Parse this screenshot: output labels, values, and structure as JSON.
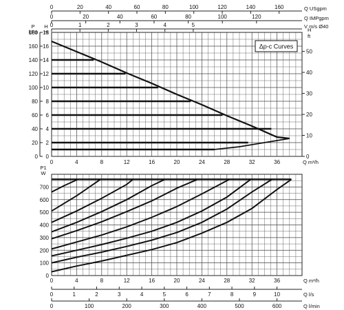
{
  "chart_data": [
    {
      "type": "line",
      "panel": "upper",
      "title": "",
      "legend_box": "Δp-c Curves",
      "legend_placement": "top-right",
      "grid": true,
      "xlabel": "Q m³/h",
      "xlim": [
        0,
        40
      ],
      "x_ticks": [
        0,
        4,
        8,
        12,
        16,
        20,
        24,
        28,
        32,
        36
      ],
      "ylim_m": [
        0,
        18
      ],
      "ylabel_left_outer": "P kPa",
      "y_ticks_kpa": [
        0,
        20,
        40,
        60,
        80,
        100,
        120,
        140,
        160,
        180
      ],
      "ylabel_left_inner": "H m",
      "y_ticks_m": [
        0,
        2,
        4,
        6,
        8,
        10,
        12,
        14,
        16,
        18
      ],
      "ylabel_right": "H ft",
      "y_ticks_ft": [
        0,
        10,
        20,
        30,
        40,
        50
      ],
      "top_axes": [
        {
          "label": "Q USgpm",
          "ticks": [
            0,
            20,
            40,
            60,
            80,
            100,
            120,
            140,
            160
          ]
        },
        {
          "label": "Q IMPgpm",
          "ticks": [
            0,
            20,
            40,
            60,
            80,
            100,
            120
          ]
        },
        {
          "label": "V m/s Ø40",
          "ticks": [
            0,
            1,
            2,
            3,
            4,
            5
          ]
        }
      ],
      "max_curve": {
        "x": [
          0,
          4,
          8,
          12,
          16,
          20,
          24,
          28,
          32,
          36,
          38
        ],
        "y": [
          16.7,
          15.2,
          13.7,
          12.1,
          10.6,
          9.0,
          7.5,
          5.9,
          4.4,
          2.8,
          2.6
        ]
      },
      "min_curve": {
        "x": [
          0,
          26,
          30,
          34,
          38
        ],
        "y": [
          1.0,
          1.0,
          1.4,
          2.0,
          2.6
        ]
      },
      "flat_curves": [
        {
          "y": 1.0,
          "x_end": 26
        },
        {
          "y": 2.0,
          "x_end": 31.4
        },
        {
          "y": 4.0,
          "x_end": 35.1
        },
        {
          "y": 6.0,
          "x_end": 27.3
        },
        {
          "y": 8.0,
          "x_end": 22.2
        },
        {
          "y": 10.0,
          "x_end": 17.0
        },
        {
          "y": 12.0,
          "x_end": 11.8
        },
        {
          "y": 14.0,
          "x_end": 6.7
        }
      ]
    },
    {
      "type": "line",
      "panel": "lower",
      "title": "",
      "grid": true,
      "xlim": [
        0,
        40
      ],
      "ylabel": "P1 W",
      "ylim": [
        0,
        800
      ],
      "y_ticks": [
        0,
        100,
        200,
        300,
        400,
        500,
        600,
        700
      ],
      "bottom_axes": [
        {
          "label": "Q m³/h",
          "ticks": [
            0,
            4,
            8,
            12,
            16,
            20,
            24,
            28,
            32,
            36
          ]
        },
        {
          "label": "Q l/s",
          "ticks": [
            0,
            1,
            2,
            3,
            4,
            5,
            6,
            7,
            8,
            9,
            10
          ]
        },
        {
          "label": "Q l/min",
          "ticks": [
            0,
            100,
            200,
            300,
            400,
            500,
            600
          ]
        }
      ],
      "max_power": 760,
      "power_curves": [
        {
          "x": [
            0,
            4,
            8,
            12,
            16,
            20,
            24,
            28,
            32,
            36,
            38.3
          ],
          "y": [
            30,
            75,
            115,
            160,
            205,
            260,
            335,
            420,
            530,
            680,
            760
          ]
        },
        {
          "x": [
            0,
            4,
            8,
            12,
            16,
            20,
            24,
            28,
            32,
            35.2
          ],
          "y": [
            100,
            145,
            185,
            230,
            280,
            340,
            420,
            525,
            660,
            760
          ]
        },
        {
          "x": [
            0,
            4,
            8,
            12,
            16,
            20,
            24,
            28,
            31.8
          ],
          "y": [
            155,
            200,
            245,
            295,
            350,
            420,
            510,
            620,
            760
          ]
        },
        {
          "x": [
            0,
            4,
            8,
            12,
            16,
            20,
            24,
            28.4
          ],
          "y": [
            210,
            265,
            320,
            385,
            460,
            545,
            645,
            760
          ]
        },
        {
          "x": [
            0,
            4,
            8,
            12,
            16,
            20,
            23.3
          ],
          "y": [
            290,
            355,
            425,
            505,
            590,
            690,
            760
          ]
        },
        {
          "x": [
            0,
            4,
            8,
            12,
            16,
            18.1
          ],
          "y": [
            345,
            420,
            505,
            600,
            710,
            760
          ]
        },
        {
          "x": [
            0,
            4,
            8,
            12,
            13.0
          ],
          "y": [
            420,
            510,
            610,
            720,
            760
          ]
        },
        {
          "x": [
            0,
            4,
            7.8
          ],
          "y": [
            510,
            630,
            760
          ]
        },
        {
          "x": [
            0,
            2,
            4.2
          ],
          "y": [
            660,
            710,
            760
          ]
        }
      ]
    }
  ]
}
